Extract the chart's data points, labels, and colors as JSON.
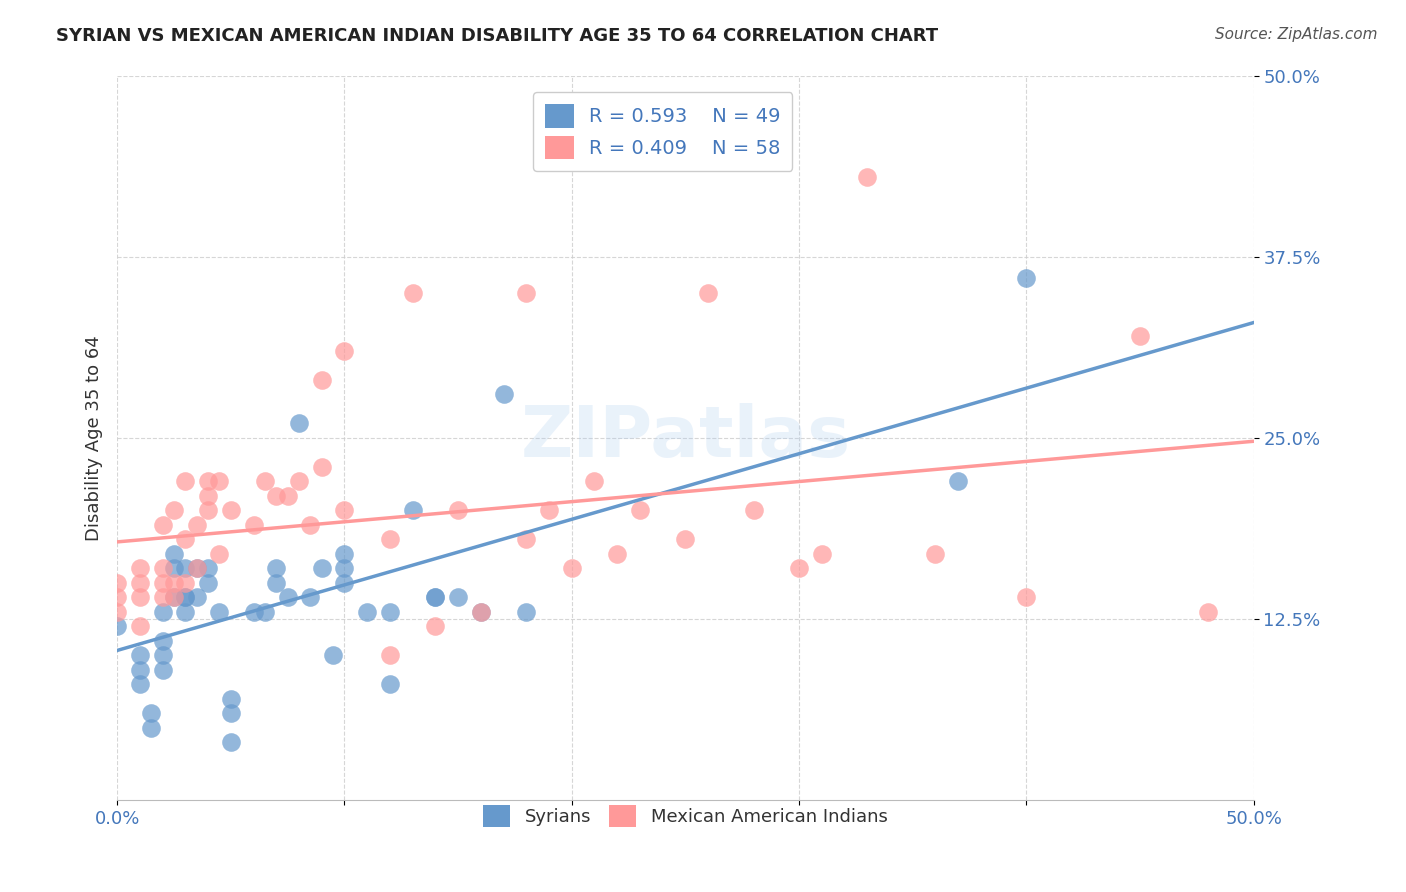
{
  "title": "SYRIAN VS MEXICAN AMERICAN INDIAN DISABILITY AGE 35 TO 64 CORRELATION CHART",
  "source": "Source: ZipAtlas.com",
  "ylabel": "Disability Age 35 to 64",
  "xlim": [
    0.0,
    0.5
  ],
  "ylim": [
    0.0,
    0.5
  ],
  "xticks": [
    0.0,
    0.1,
    0.2,
    0.3,
    0.4,
    0.5
  ],
  "yticks": [
    0.125,
    0.25,
    0.375,
    0.5
  ],
  "xticklabels": [
    "0.0%",
    "",
    "",
    "",
    "",
    "50.0%"
  ],
  "yticklabels": [
    "12.5%",
    "25.0%",
    "37.5%",
    "50.0%"
  ],
  "legend_r1": "R = 0.593",
  "legend_n1": "N = 49",
  "legend_r2": "R = 0.409",
  "legend_n2": "N = 58",
  "color_syrian": "#6699CC",
  "color_mexican": "#FF9999",
  "background_color": "#FFFFFF",
  "watermark": "ZIPatlas",
  "syrians_x": [
    0.0,
    0.01,
    0.01,
    0.01,
    0.015,
    0.015,
    0.02,
    0.02,
    0.02,
    0.02,
    0.025,
    0.025,
    0.025,
    0.03,
    0.03,
    0.03,
    0.03,
    0.035,
    0.035,
    0.04,
    0.04,
    0.045,
    0.05,
    0.05,
    0.05,
    0.06,
    0.065,
    0.07,
    0.07,
    0.075,
    0.08,
    0.085,
    0.09,
    0.095,
    0.1,
    0.1,
    0.1,
    0.11,
    0.12,
    0.12,
    0.13,
    0.14,
    0.14,
    0.15,
    0.16,
    0.17,
    0.18,
    0.37,
    0.4
  ],
  "syrians_y": [
    0.12,
    0.08,
    0.09,
    0.1,
    0.05,
    0.06,
    0.09,
    0.1,
    0.11,
    0.13,
    0.14,
    0.16,
    0.17,
    0.13,
    0.14,
    0.14,
    0.16,
    0.14,
    0.16,
    0.15,
    0.16,
    0.13,
    0.04,
    0.06,
    0.07,
    0.13,
    0.13,
    0.15,
    0.16,
    0.14,
    0.26,
    0.14,
    0.16,
    0.1,
    0.15,
    0.16,
    0.17,
    0.13,
    0.08,
    0.13,
    0.2,
    0.14,
    0.14,
    0.14,
    0.13,
    0.28,
    0.13,
    0.22,
    0.36
  ],
  "mexicans_x": [
    0.0,
    0.0,
    0.0,
    0.01,
    0.01,
    0.01,
    0.01,
    0.02,
    0.02,
    0.02,
    0.02,
    0.025,
    0.025,
    0.025,
    0.03,
    0.03,
    0.03,
    0.035,
    0.035,
    0.04,
    0.04,
    0.04,
    0.045,
    0.045,
    0.05,
    0.06,
    0.065,
    0.07,
    0.075,
    0.08,
    0.085,
    0.09,
    0.09,
    0.1,
    0.1,
    0.12,
    0.12,
    0.13,
    0.14,
    0.15,
    0.16,
    0.18,
    0.18,
    0.19,
    0.2,
    0.21,
    0.22,
    0.23,
    0.25,
    0.26,
    0.28,
    0.3,
    0.31,
    0.33,
    0.36,
    0.4,
    0.45,
    0.48
  ],
  "mexicans_y": [
    0.13,
    0.14,
    0.15,
    0.12,
    0.14,
    0.15,
    0.16,
    0.14,
    0.15,
    0.16,
    0.19,
    0.14,
    0.15,
    0.2,
    0.15,
    0.18,
    0.22,
    0.16,
    0.19,
    0.2,
    0.21,
    0.22,
    0.17,
    0.22,
    0.2,
    0.19,
    0.22,
    0.21,
    0.21,
    0.22,
    0.19,
    0.23,
    0.29,
    0.2,
    0.31,
    0.1,
    0.18,
    0.35,
    0.12,
    0.2,
    0.13,
    0.18,
    0.35,
    0.2,
    0.16,
    0.22,
    0.17,
    0.2,
    0.18,
    0.35,
    0.2,
    0.16,
    0.17,
    0.43,
    0.17,
    0.14,
    0.32,
    0.13
  ]
}
